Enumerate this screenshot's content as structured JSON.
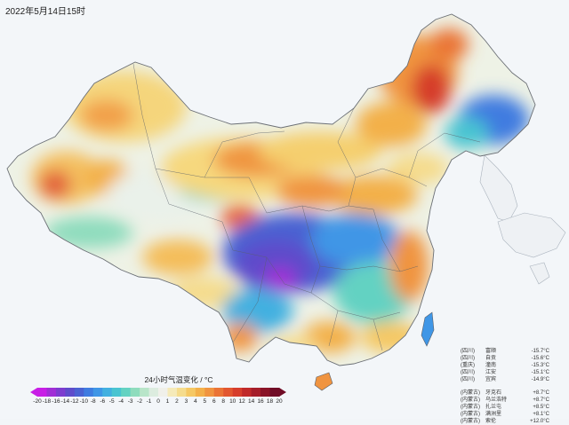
{
  "header": {
    "datetime": "2022年5月14日15时"
  },
  "legend": {
    "title": "24小时气温变化 / °C",
    "ticks": [
      "-20",
      "-18",
      "-16",
      "-14",
      "-12",
      "-10",
      "-8",
      "-6",
      "-5",
      "-4",
      "-3",
      "-2",
      "-1",
      "0",
      "1",
      "2",
      "3",
      "4",
      "5",
      "6",
      "8",
      "10",
      "12",
      "14",
      "16",
      "18",
      "20"
    ],
    "colors": [
      "#c81ee6",
      "#a12ed6",
      "#7d3ccf",
      "#5e4ccb",
      "#4a62d2",
      "#3f7ce0",
      "#3f96e6",
      "#42b0e0",
      "#49c4d1",
      "#63d2c2",
      "#8edcbd",
      "#b8e5c9",
      "#dcecdf",
      "#f0f0ea",
      "#f5eab9",
      "#f5dc8d",
      "#f5c864",
      "#f3b04a",
      "#f09440",
      "#ea7436",
      "#e25730",
      "#d63e2c",
      "#c02a2a",
      "#a51e2a",
      "#8a1428",
      "#700c26"
    ]
  },
  "cooling_stations": [
    {
      "province": "(四川)",
      "name": "富顺",
      "value": "-15.7°C"
    },
    {
      "province": "(四川)",
      "name": "自贡",
      "value": "-15.6°C"
    },
    {
      "province": "(重庆)",
      "name": "潼南",
      "value": "-15.3°C"
    },
    {
      "province": "(四川)",
      "name": "江安",
      "value": "-15.1°C"
    },
    {
      "province": "(四川)",
      "name": "宜宾",
      "value": "-14.9°C"
    }
  ],
  "warming_stations": [
    {
      "province": "(内蒙古)",
      "name": "牙克石",
      "value": "+8.7°C"
    },
    {
      "province": "(内蒙古)",
      "name": "乌兰浩特",
      "value": "+8.7°C"
    },
    {
      "province": "(内蒙古)",
      "name": "扎兰屯",
      "value": "+8.5°C"
    },
    {
      "province": "(内蒙古)",
      "name": "满洲里",
      "value": "+8.1°C"
    },
    {
      "province": "(内蒙古)",
      "name": "索伦",
      "value": "+12.0°C"
    }
  ]
}
